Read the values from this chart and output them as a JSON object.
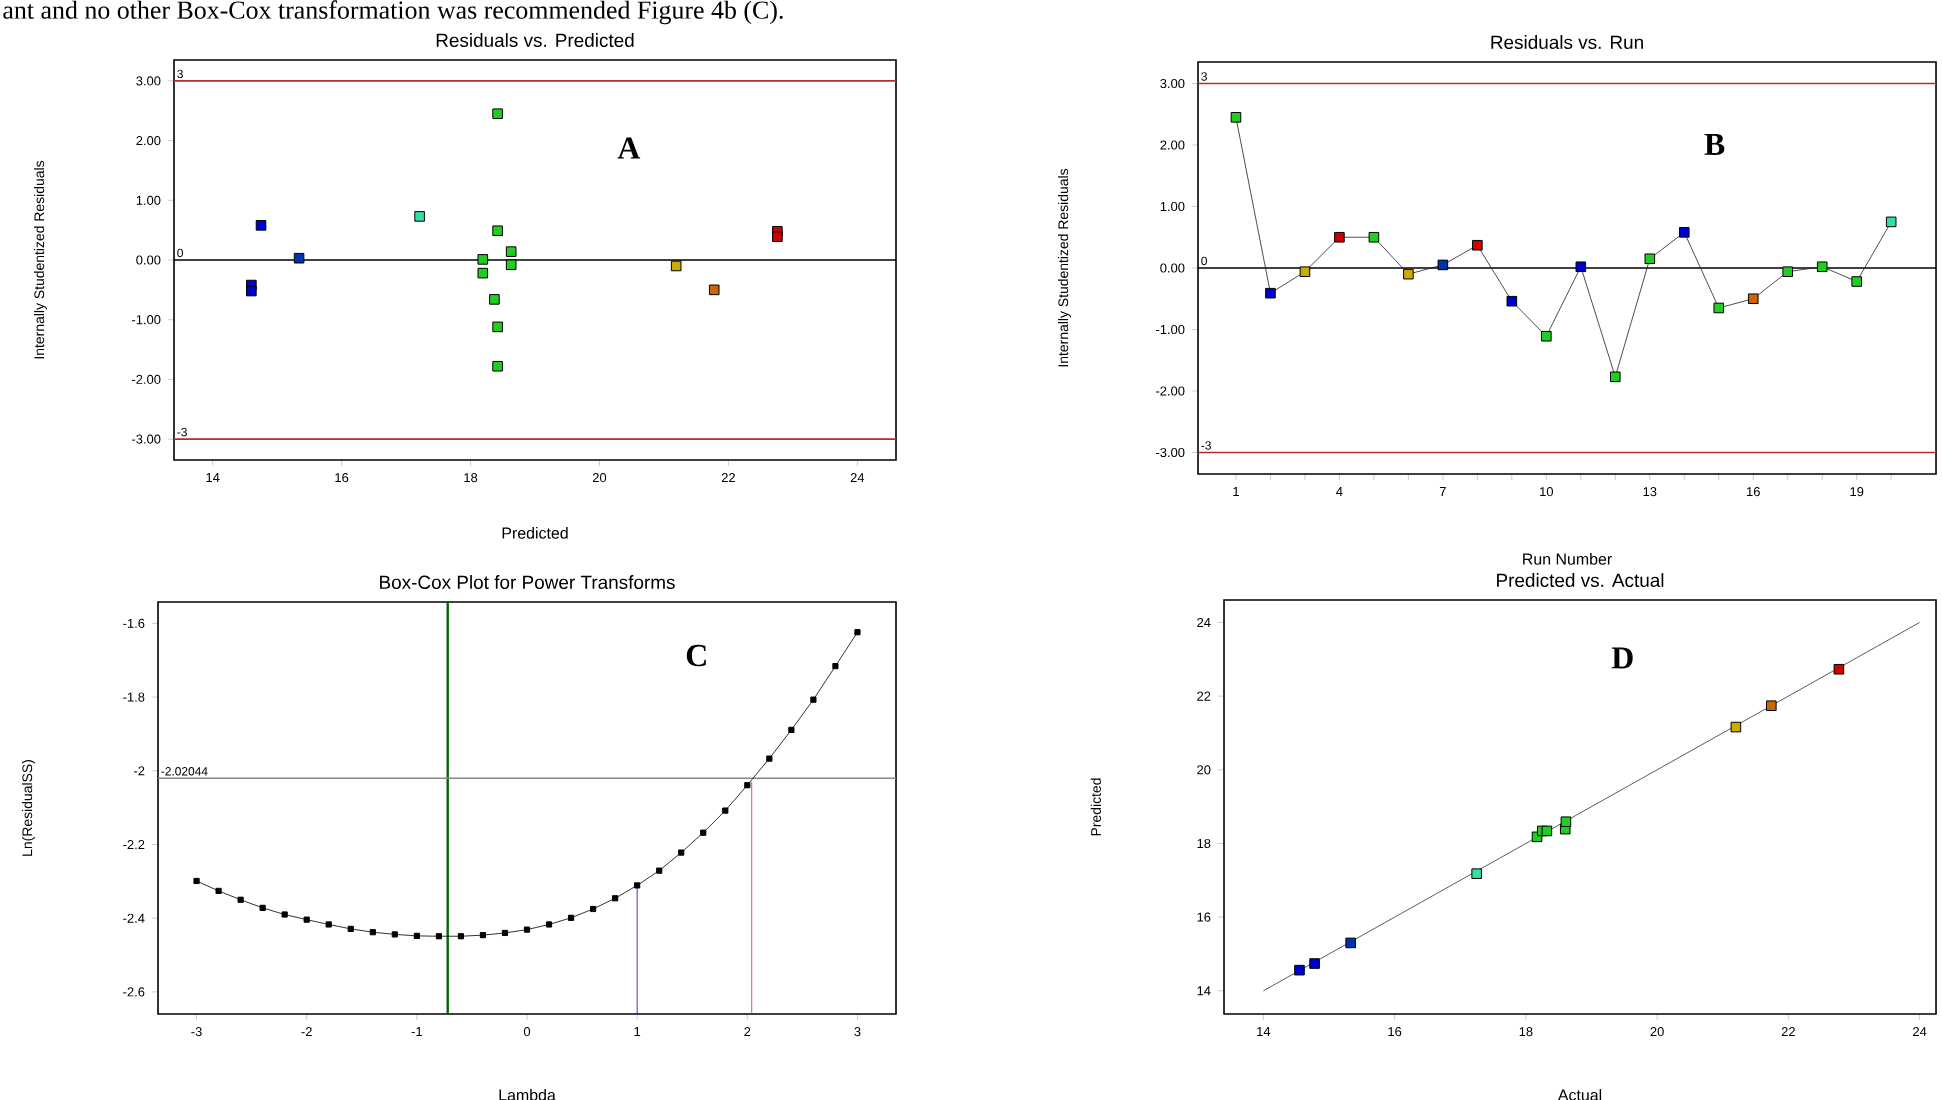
{
  "chart_data": [
    {
      "type": "scatter",
      "title": "Residuals vs. Predicted",
      "xlabel": "Predicted",
      "ylabel": "Internally Studentized Residuals",
      "annotations": [
        "ant and no other Box-Cox transformation was recommended Figure 4b (C).",
        "A"
      ],
      "xlim": [
        13.4,
        24.6
      ],
      "xticks": [
        14,
        16,
        18,
        20,
        22,
        24
      ],
      "ylim": [
        -3.35,
        3.35
      ],
      "yticks": [
        {
          "value": -3,
          "label": "-3.00"
        },
        {
          "value": -2,
          "label": "-2.00"
        },
        {
          "value": -1,
          "label": "-1.00"
        },
        {
          "value": 0,
          "label": "0.00"
        },
        {
          "value": 1,
          "label": "1.00"
        },
        {
          "value": 2,
          "label": "2.00"
        },
        {
          "value": 3,
          "label": "3.00"
        }
      ],
      "ref_lines": [
        {
          "axis": "y",
          "value": 3,
          "label": "3",
          "color": "#b03030"
        },
        {
          "axis": "y",
          "value": 0,
          "label": "0",
          "color": "#000000"
        },
        {
          "axis": "y",
          "value": -3,
          "label": "-3",
          "color": "#b03030"
        }
      ],
      "marker": "square",
      "series": [
        {
          "x": [
            14.6,
            14.6,
            14.75,
            15.34,
            17.21,
            18.42,
            18.42,
            18.19,
            18.19,
            18.63,
            18.63,
            18.37,
            18.42,
            18.42,
            21.19,
            21.78,
            22.76,
            22.76
          ],
          "values": [
            -0.42,
            -0.52,
            0.58,
            0.03,
            0.73,
            2.45,
            0.49,
            0.01,
            -0.22,
            0.14,
            -0.08,
            -0.66,
            -1.12,
            -1.78,
            -0.1,
            -0.5,
            0.48,
            0.39
          ],
          "colors": [
            "#0000cc",
            "#0000cc",
            "#0000cc",
            "#0033aa",
            "#33ddaa",
            "#22cc22",
            "#22cc22",
            "#22cc22",
            "#22cc22",
            "#22cc22",
            "#22cc22",
            "#22cc22",
            "#22cc22",
            "#22cc22",
            "#ccaa00",
            "#cc6600",
            "#cc0000",
            "#cc0000"
          ]
        }
      ]
    },
    {
      "type": "line",
      "title": "Residuals vs. Run",
      "xlabel": "Run Number",
      "ylabel": "Internally Studentized Residuals",
      "annotations": [
        "B"
      ],
      "xlim": [
        -0.1,
        21.3
      ],
      "xticks": [
        1,
        {
          "value": 2,
          "label": null
        },
        {
          "value": 3,
          "label": null
        },
        4,
        {
          "value": 5,
          "label": null
        },
        {
          "value": 6,
          "label": null
        },
        7,
        {
          "value": 8,
          "label": null
        },
        {
          "value": 9,
          "label": null
        },
        10,
        {
          "value": 11,
          "label": null
        },
        {
          "value": 12,
          "label": null
        },
        13,
        {
          "value": 14,
          "label": null
        },
        {
          "value": 15,
          "label": null
        },
        16,
        {
          "value": 17,
          "label": null
        },
        {
          "value": 18,
          "label": null
        },
        19,
        {
          "value": 20,
          "label": null
        }
      ],
      "ylim": [
        -3.35,
        3.35
      ],
      "yticks": [
        {
          "value": -3,
          "label": "-3.00"
        },
        {
          "value": -2,
          "label": "-2.00"
        },
        {
          "value": -1,
          "label": "-1.00"
        },
        {
          "value": 0,
          "label": "0.00"
        },
        {
          "value": 1,
          "label": "1.00"
        },
        {
          "value": 2,
          "label": "2.00"
        },
        {
          "value": 3,
          "label": "3.00"
        }
      ],
      "ref_lines": [
        {
          "axis": "y",
          "value": 3,
          "label": "3",
          "color": "#b03030"
        },
        {
          "axis": "y",
          "value": 0,
          "label": "0",
          "color": "#000000"
        },
        {
          "axis": "y",
          "value": -3,
          "label": "-3",
          "color": "#b03030"
        }
      ],
      "marker": "square",
      "series": [
        {
          "color": "#222222",
          "x": [
            1,
            2,
            3,
            4,
            5,
            6,
            7,
            8,
            9,
            10,
            11,
            12,
            13,
            14,
            15,
            16,
            17,
            18,
            19,
            20
          ],
          "values": [
            2.45,
            -0.41,
            -0.06,
            0.5,
            0.5,
            -0.1,
            0.05,
            0.37,
            -0.54,
            -1.11,
            0.02,
            -1.77,
            0.15,
            0.58,
            -0.65,
            -0.5,
            -0.06,
            0.02,
            -0.22,
            0.75
          ],
          "colors": [
            "#22cc22",
            "#0000cc",
            "#ccaa00",
            "#cc0000",
            "#22cc22",
            "#ccaa00",
            "#0033aa",
            "#cc0000",
            "#0000cc",
            "#22cc22",
            "#0000cc",
            "#22cc22",
            "#22cc22",
            "#0000cc",
            "#22cc22",
            "#cc6600",
            "#22cc22",
            "#22cc22",
            "#22cc22",
            "#33ddaa"
          ]
        }
      ]
    },
    {
      "type": "line",
      "title": "Box-Cox Plot for Power Transforms",
      "xlabel": "Lambda",
      "ylabel": "Ln(ResidualSS)",
      "annotations": [
        "C"
      ],
      "xlim": [
        -3.35,
        3.35
      ],
      "xticks": [
        -3,
        -2,
        -1,
        0,
        1,
        2,
        3
      ],
      "ylim": [
        -2.66,
        -1.542
      ],
      "yticks": [
        -2.6,
        -2.4,
        -2.2,
        -2,
        -1.8,
        -1.6
      ],
      "ref_lines": [
        {
          "axis": "x",
          "value": -0.72,
          "color": "#006400"
        },
        {
          "axis": "y",
          "value": -2.02044,
          "label": "-2.02044",
          "color": "#888888"
        }
      ],
      "series": [
        {
          "color": "#000000",
          "marker": "square",
          "x": [
            -3,
            -2.8,
            -2.6,
            -2.4,
            -2.2,
            -2,
            -1.8,
            -1.6,
            -1.4,
            -1.2,
            -1,
            -0.8,
            -0.6,
            -0.4,
            -0.2,
            0,
            0.2,
            0.4,
            0.6,
            0.8,
            1,
            1.2,
            1.4,
            1.6,
            1.8,
            2,
            2.2,
            2.4,
            2.6,
            2.8,
            3
          ],
          "values": [
            -2.299,
            -2.326,
            -2.35,
            -2.372,
            -2.39,
            -2.404,
            -2.417,
            -2.429,
            -2.438,
            -2.444,
            -2.448,
            -2.449,
            -2.449,
            -2.446,
            -2.44,
            -2.431,
            -2.417,
            -2.399,
            -2.375,
            -2.346,
            -2.311,
            -2.271,
            -2.222,
            -2.168,
            -2.108,
            -2.039,
            -1.967,
            -1.889,
            -1.807,
            -1.716,
            -1.624
          ]
        },
        {
          "color": "#0000ff",
          "marker": "none",
          "x": [
            1,
            1
          ],
          "values": [
            -2.66,
            -2.311
          ]
        },
        {
          "color": "#cc3333",
          "marker": "none",
          "x": [
            2.04,
            2.04
          ],
          "values": [
            -2.66,
            -2.03
          ]
        }
      ]
    },
    {
      "type": "scatter",
      "title": "Predicted vs. Actual",
      "xlabel": "Actual",
      "ylabel": "Predicted",
      "annotations": [
        "D"
      ],
      "xlim": [
        13.4,
        24.25
      ],
      "xticks": [
        14,
        16,
        18,
        20,
        22,
        24
      ],
      "ylim": [
        13.37,
        24.61
      ],
      "yticks": [
        14,
        16,
        18,
        20,
        22,
        24
      ],
      "marker": "square",
      "series": [
        {
          "type": "line",
          "color": "#333333",
          "marker": "none",
          "x": [
            14,
            24
          ],
          "values": [
            14,
            24
          ]
        },
        {
          "x": [
            14.55,
            14.78,
            15.33,
            17.25,
            18.17,
            18.25,
            18.32,
            18.6,
            18.61,
            21.2,
            21.74,
            22.77
          ],
          "values": [
            14.56,
            14.74,
            15.3,
            17.18,
            18.18,
            18.34,
            18.34,
            18.39,
            18.59,
            21.16,
            21.74,
            22.73
          ],
          "colors": [
            "#0000cc",
            "#0000cc",
            "#0033aa",
            "#33ddaa",
            "#22cc22",
            "#22cc22",
            "#22cc22",
            "#22cc22",
            "#22cc22",
            "#ccaa00",
            "#cc6600",
            "#cc0000"
          ]
        }
      ]
    }
  ]
}
